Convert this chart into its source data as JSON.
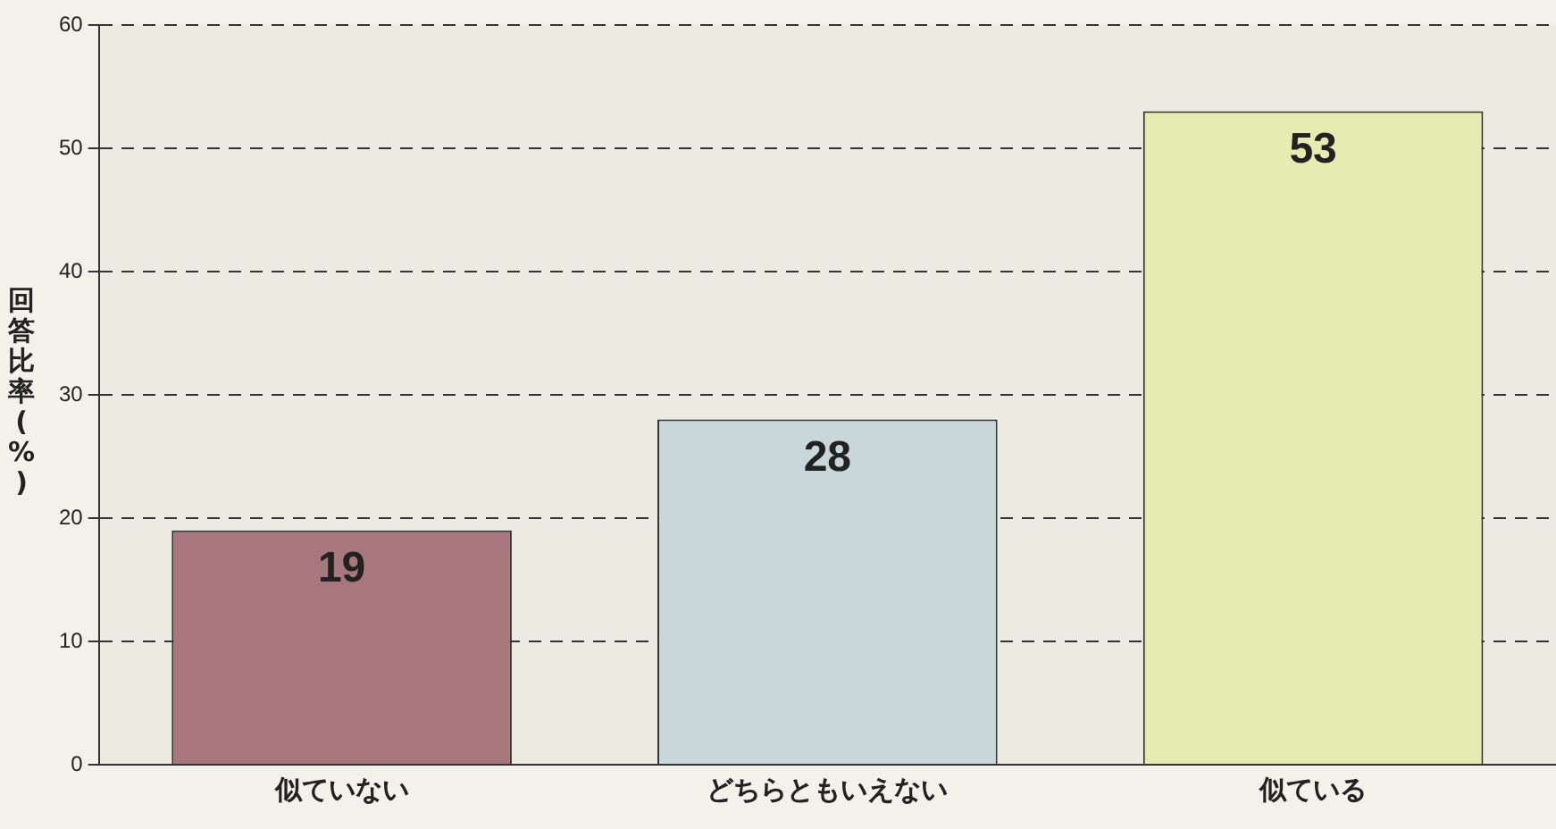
{
  "chart_data": {
    "type": "bar",
    "ylabel": "回答比率(%)",
    "categories": [
      "似ていない",
      "どちらともいえない",
      "似ている"
    ],
    "values": [
      19,
      28,
      53
    ],
    "colors": [
      "#a8777e",
      "#c9d6da",
      "#e6ebb2"
    ],
    "ylim": [
      0,
      60
    ],
    "yticks": [
      0,
      10,
      20,
      30,
      40,
      50,
      60
    ],
    "grid": "y",
    "data_labels": true,
    "legend": false
  }
}
